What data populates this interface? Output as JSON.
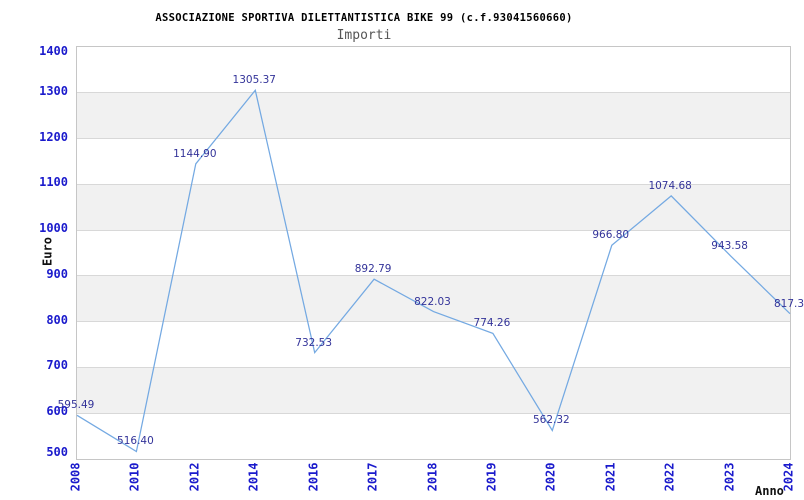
{
  "header": {
    "title": "ASSOCIAZIONE SPORTIVA DILETTANTISTICA BIKE 99 (c.f.93041560660)",
    "subtitle": "Importi"
  },
  "chart_data": {
    "type": "line",
    "title": "ASSOCIAZIONE SPORTIVA DILETTANTISTICA BIKE 99 (c.f.93041560660)",
    "subtitle": "Importi",
    "xlabel": "Anno",
    "ylabel": "Euro",
    "categories": [
      "2008",
      "2010",
      "2012",
      "2014",
      "2016",
      "2017",
      "2018",
      "2019",
      "2020",
      "2021",
      "2022",
      "2023",
      "2024"
    ],
    "values": [
      595.49,
      516.4,
      1144.9,
      1305.37,
      732.53,
      892.79,
      822.03,
      774.26,
      562.32,
      966.8,
      1074.68,
      943.58,
      817.3
    ],
    "point_labels": [
      "595.49",
      "516.40",
      "1144.90",
      "1305.37",
      "732.53",
      "892.79",
      "822.03",
      "774.26",
      "562.32",
      "966.80",
      "1074.68",
      "943.58",
      "817.3"
    ],
    "ylim": [
      500,
      1400
    ],
    "ytick_step": 100,
    "yticks": [
      "1400",
      "1300",
      "1200",
      "1100",
      "1000",
      "900",
      "800",
      "700",
      "600",
      "500"
    ],
    "grid": "horizontal-bands",
    "legend": "none",
    "colors": {
      "line": "#74a9e2",
      "tick_label": "#1a1acc",
      "data_label": "#333399",
      "band": "#f1f1f1",
      "grid_line": "#d8d8d8",
      "plot_border": "#c6c6c6",
      "title": "#000000",
      "subtitle": "#555555"
    }
  }
}
